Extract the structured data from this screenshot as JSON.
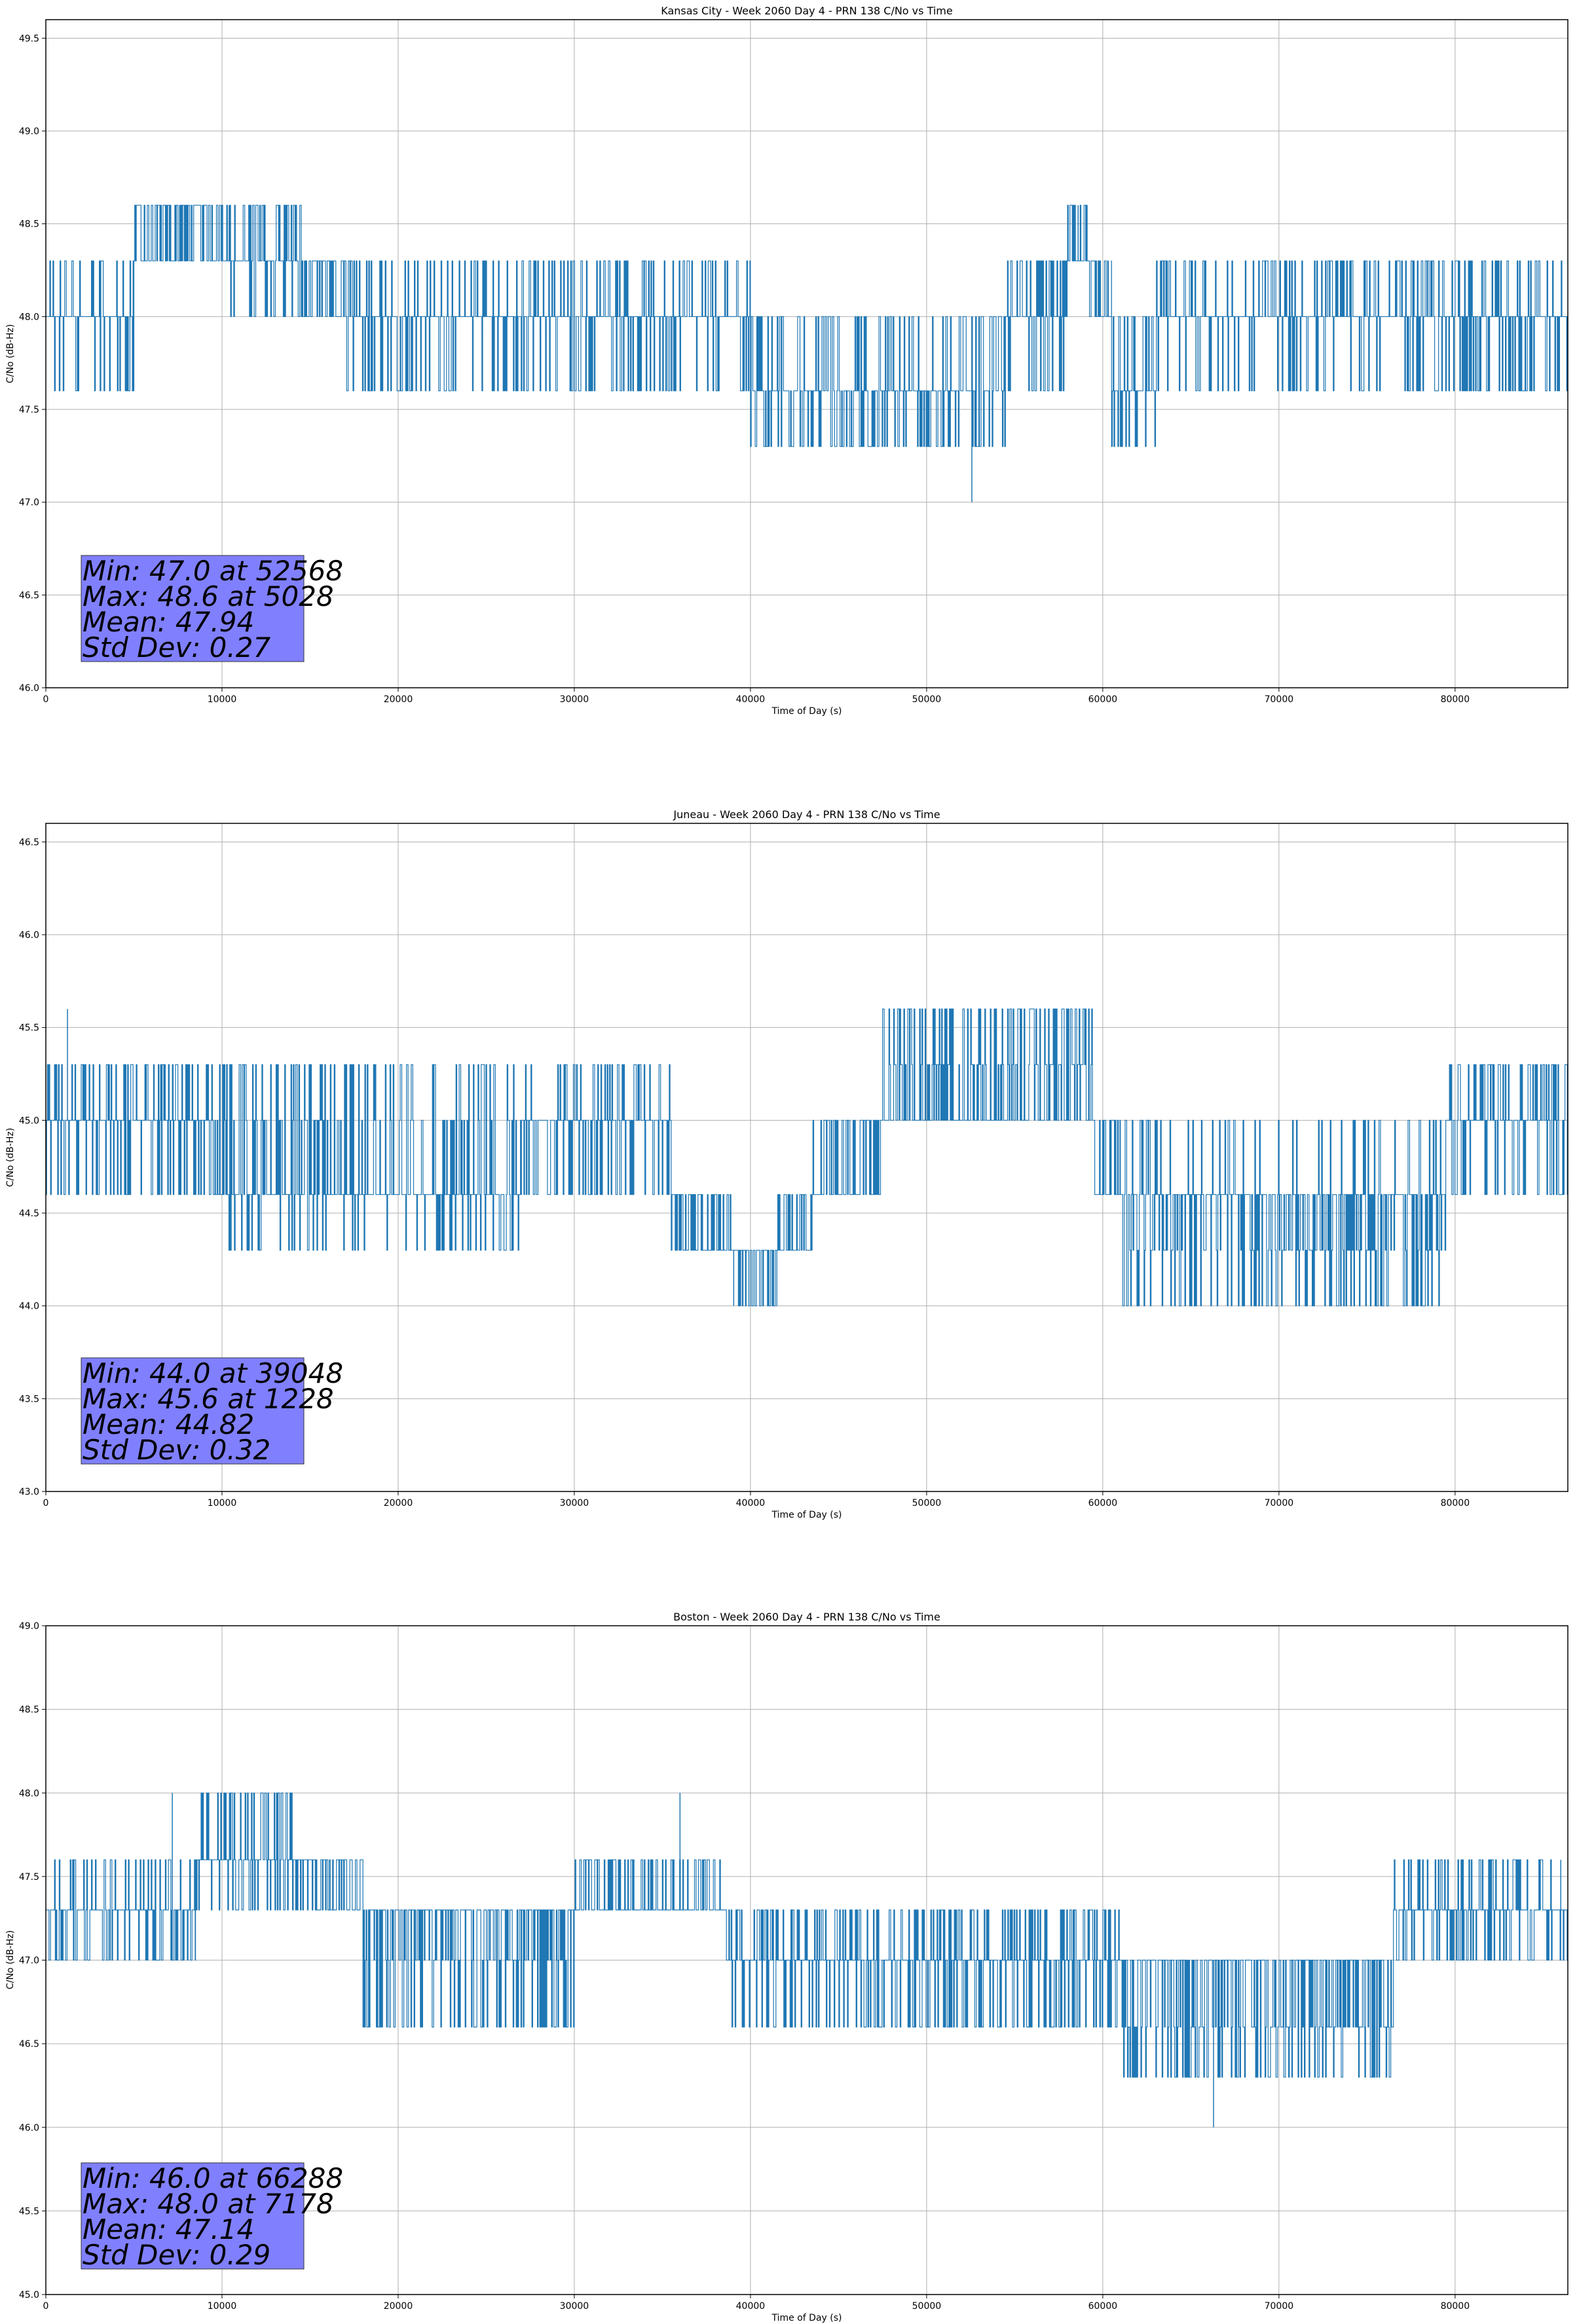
{
  "chart_data": [
    {
      "type": "line",
      "title": "Kansas City - Week 2060 Day 4 - PRN 138 C/No vs Time",
      "xlabel": "Time of Day (s)",
      "ylabel": "C/No (dB-Hz)",
      "xlim": [
        0,
        86400
      ],
      "ylim": [
        46.0,
        49.6
      ],
      "xticks": [
        0,
        10000,
        20000,
        30000,
        40000,
        50000,
        60000,
        70000,
        80000
      ],
      "yticks": [
        46.0,
        46.5,
        47.0,
        47.5,
        48.0,
        48.5,
        49.0,
        49.5
      ],
      "grid": true,
      "color": "#1f77b4",
      "segments": [
        {
          "x": [
            0,
            5000
          ],
          "base": 48.0,
          "levels": [
            47.6,
            48.0,
            48.3
          ],
          "dense": 0.55
        },
        {
          "x": [
            5000,
            10400
          ],
          "base": 48.6,
          "levels": [
            48.3,
            48.6
          ],
          "dense": 0.9
        },
        {
          "x": [
            10400,
            14500
          ],
          "base": 48.3,
          "levels": [
            48.0,
            48.3,
            48.6
          ],
          "dense": 0.7
        },
        {
          "x": [
            14500,
            16500
          ],
          "base": 48.3,
          "levels": [
            48.0,
            48.3
          ],
          "dense": 0.85
        },
        {
          "x": [
            16500,
            40000
          ],
          "base": 48.0,
          "levels": [
            47.6,
            48.0,
            48.3
          ],
          "dense": 0.6
        },
        {
          "x": [
            40000,
            46000
          ],
          "base": 47.6,
          "levels": [
            47.6,
            48.0,
            47.3
          ],
          "dense": 0.85
        },
        {
          "x": [
            46000,
            54500
          ],
          "base": 47.6,
          "levels": [
            47.3,
            47.6,
            48.0
          ],
          "dense": 0.75
        },
        {
          "x": [
            54500,
            58000
          ],
          "base": 48.0,
          "levels": [
            47.6,
            48.0,
            48.3
          ],
          "dense": 0.75
        },
        {
          "x": [
            58000,
            59200
          ],
          "base": 48.3,
          "levels": [
            48.3,
            48.6
          ],
          "dense": 0.8
        },
        {
          "x": [
            59200,
            60500
          ],
          "base": 48.0,
          "levels": [
            48.0,
            48.3
          ],
          "dense": 0.8
        },
        {
          "x": [
            60500,
            63000
          ],
          "base": 47.6,
          "levels": [
            47.3,
            47.6,
            48.0
          ],
          "dense": 0.6
        },
        {
          "x": [
            63000,
            86400
          ],
          "base": 48.0,
          "levels": [
            47.6,
            48.0,
            48.3
          ],
          "dense": 0.65
        }
      ],
      "spikes": [
        {
          "x": 52568,
          "y": 47.0
        },
        {
          "x": 5028,
          "y": 48.6
        },
        {
          "x": 58600,
          "y": 48.6
        }
      ],
      "stats": {
        "min": "Min: 47.0 at 52568",
        "max": "Max: 48.6 at 5028",
        "mean": "Mean: 47.94",
        "std": "Std Dev: 0.27"
      }
    },
    {
      "type": "line",
      "title": "Juneau - Week 2060 Day 4 - PRN 138 C/No vs Time",
      "xlabel": "Time of Day (s)",
      "ylabel": "C/No (dB-Hz)",
      "xlim": [
        0,
        86400
      ],
      "ylim": [
        43.0,
        46.6
      ],
      "xticks": [
        0,
        10000,
        20000,
        30000,
        40000,
        50000,
        60000,
        70000,
        80000
      ],
      "yticks": [
        43.0,
        43.5,
        44.0,
        44.5,
        45.0,
        45.5,
        46.0,
        46.5
      ],
      "grid": true,
      "color": "#1f77b4",
      "segments": [
        {
          "x": [
            0,
            9500
          ],
          "base": 45.0,
          "levels": [
            44.6,
            45.0,
            45.3
          ],
          "dense": 0.6
        },
        {
          "x": [
            9500,
            27000
          ],
          "base": 44.6,
          "levels": [
            44.6,
            45.0,
            45.3,
            44.3
          ],
          "dense": 0.6
        },
        {
          "x": [
            27000,
            35500
          ],
          "base": 45.0,
          "levels": [
            44.6,
            45.0,
            45.3
          ],
          "dense": 0.6
        },
        {
          "x": [
            35500,
            39000
          ],
          "base": 44.3,
          "levels": [
            44.3,
            44.6
          ],
          "dense": 0.85
        },
        {
          "x": [
            39000,
            41500
          ],
          "base": 44.3,
          "levels": [
            44.0,
            44.3
          ],
          "dense": 0.85
        },
        {
          "x": [
            41500,
            43500
          ],
          "base": 44.3,
          "levels": [
            44.3,
            44.6
          ],
          "dense": 0.85
        },
        {
          "x": [
            43500,
            47500
          ],
          "base": 44.6,
          "levels": [
            44.6,
            45.0
          ],
          "dense": 0.9
        },
        {
          "x": [
            47500,
            59500
          ],
          "base": 45.0,
          "levels": [
            45.0,
            45.3,
            45.6
          ],
          "dense": 0.7
        },
        {
          "x": [
            59500,
            61000
          ],
          "base": 44.6,
          "levels": [
            44.6,
            45.0
          ],
          "dense": 0.7
        },
        {
          "x": [
            61000,
            79500
          ],
          "base": 44.6,
          "levels": [
            44.3,
            44.6,
            45.0,
            44.0
          ],
          "dense": 0.65
        },
        {
          "x": [
            79500,
            86400
          ],
          "base": 45.0,
          "levels": [
            44.6,
            45.0,
            45.3
          ],
          "dense": 0.7
        }
      ],
      "spikes": [
        {
          "x": 1228,
          "y": 45.6
        },
        {
          "x": 39048,
          "y": 44.0
        }
      ],
      "stats": {
        "min": "Min: 44.0 at 39048",
        "max": "Max: 45.6 at 1228",
        "mean": "Mean: 44.82",
        "std": "Std Dev: 0.32"
      }
    },
    {
      "type": "line",
      "title": "Boston - Week 2060 Day 4 - PRN 138 C/No vs Time",
      "xlabel": "Time of Day (s)",
      "ylabel": "C/No (dB-Hz)",
      "xlim": [
        0,
        86400
      ],
      "ylim": [
        45.0,
        49.0
      ],
      "xticks": [
        0,
        10000,
        20000,
        30000,
        40000,
        50000,
        60000,
        70000,
        80000
      ],
      "yticks": [
        45.0,
        45.5,
        46.0,
        46.5,
        47.0,
        47.5,
        48.0,
        48.5,
        49.0
      ],
      "grid": true,
      "color": "#1f77b4",
      "segments": [
        {
          "x": [
            0,
            8500
          ],
          "base": 47.3,
          "levels": [
            47.0,
            47.3,
            47.6
          ],
          "dense": 0.55
        },
        {
          "x": [
            8500,
            14000
          ],
          "base": 47.6,
          "levels": [
            47.6,
            48.0,
            47.3
          ],
          "dense": 0.7
        },
        {
          "x": [
            14000,
            18000
          ],
          "base": 47.6,
          "levels": [
            47.3,
            47.6
          ],
          "dense": 0.75
        },
        {
          "x": [
            18000,
            30000
          ],
          "base": 47.3,
          "levels": [
            47.0,
            47.3,
            46.6
          ],
          "dense": 0.7
        },
        {
          "x": [
            30000,
            38500
          ],
          "base": 47.3,
          "levels": [
            47.3,
            47.6
          ],
          "dense": 0.7
        },
        {
          "x": [
            38500,
            61000
          ],
          "base": 47.0,
          "levels": [
            46.6,
            47.0,
            47.3
          ],
          "dense": 0.7
        },
        {
          "x": [
            61000,
            76500
          ],
          "base": 47.0,
          "levels": [
            46.3,
            46.6,
            47.0
          ],
          "dense": 0.7
        },
        {
          "x": [
            76500,
            86400
          ],
          "base": 47.3,
          "levels": [
            47.0,
            47.3,
            47.6
          ],
          "dense": 0.65
        }
      ],
      "spikes": [
        {
          "x": 66288,
          "y": 46.0
        },
        {
          "x": 7178,
          "y": 48.0
        },
        {
          "x": 36000,
          "y": 48.0
        },
        {
          "x": 86000,
          "y": 47.6
        }
      ],
      "stats": {
        "min": "Min: 46.0 at 66288",
        "max": "Max: 48.0 at 7178",
        "mean": "Mean: 47.14",
        "std": "Std Dev: 0.29"
      }
    }
  ]
}
